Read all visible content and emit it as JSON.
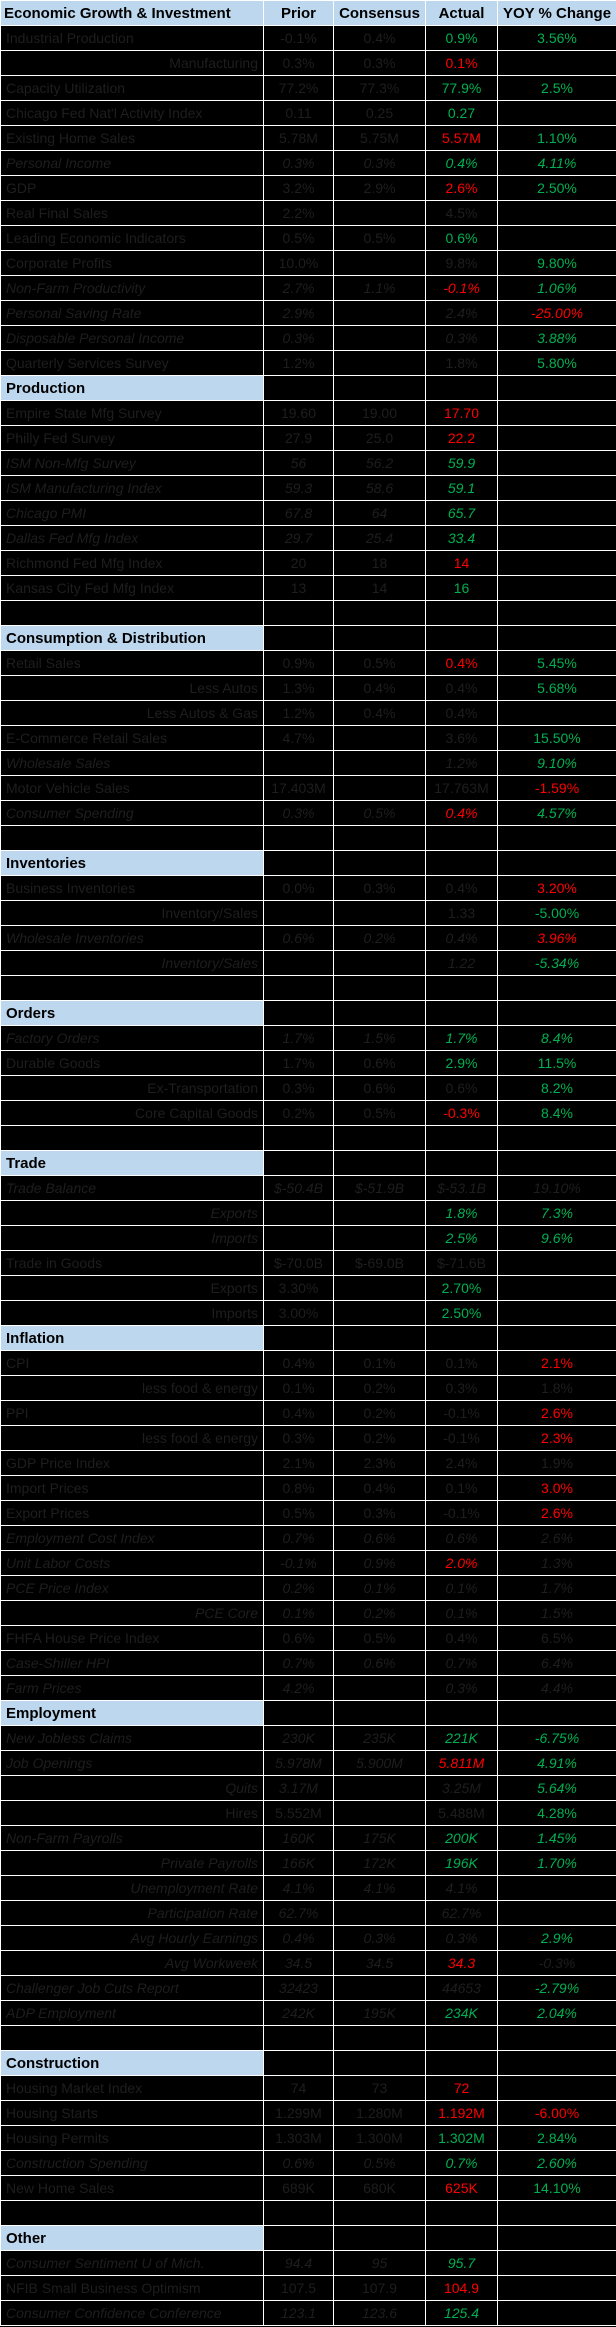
{
  "palette": {
    "background": "#000000",
    "gridline": "#FFFFFF",
    "header_bg": "#BDD7EE",
    "header_text": "#000000",
    "positive_value": "#00B050",
    "negative_value": "#FF0000",
    "muted_value": "#1E1E1E"
  },
  "header": {
    "title": "Economic Growth & Investment",
    "columns": [
      "Prior",
      "Consensus",
      "Actual",
      "YOY % Change"
    ]
  },
  "sections": [
    {
      "title": "",
      "rows": [
        {
          "label": "Industrial Production",
          "prior": "-0.1%",
          "consensus": "0.4%",
          "actual": "0.9%",
          "ac": "green",
          "yoy": "3.56%",
          "yc": "green"
        },
        {
          "label": "Manufacturing",
          "align": "right",
          "prior": "0.3%",
          "consensus": "0.3%",
          "actual": "0.1%",
          "ac": "red",
          "yoy": ""
        },
        {
          "label": "Capacity Utilization",
          "prior": "77.2%",
          "consensus": "77.3%",
          "actual": "77.9%",
          "ac": "green",
          "yoy": "2.5%",
          "yc": "green"
        },
        {
          "label": "Chicago Fed Nat'l Activity Index",
          "prior": "0.11",
          "consensus": "0.25",
          "actual": "0.27",
          "ac": "green",
          "yoy": ""
        },
        {
          "label": "Existing Home Sales",
          "prior": "5.78M",
          "consensus": "5.75M",
          "actual": "5.57M",
          "ac": "red",
          "yoy": "1.10%",
          "yc": "green"
        },
        {
          "label": "Personal Income",
          "italic": true,
          "prior": "0.3%",
          "consensus": "0.3%",
          "actual": "0.4%",
          "ac": "green",
          "yoy": "4.11%",
          "yc": "green"
        },
        {
          "label": "GDP",
          "prior": "3.2%",
          "consensus": "2.9%",
          "actual": "2.6%",
          "ac": "red",
          "yoy": "2.50%",
          "yc": "green"
        },
        {
          "label": "Real Final Sales",
          "prior": "2.2%",
          "consensus": "",
          "actual": "4.5%",
          "ac": "dark",
          "yoy": ""
        },
        {
          "label": "Leading Economic Indicators",
          "prior": "0.5%",
          "consensus": "0.5%",
          "actual": "0.6%",
          "ac": "green",
          "yoy": ""
        },
        {
          "label": "Corporate Profits",
          "prior": "10.0%",
          "consensus": "",
          "actual": "9.8%",
          "ac": "dark",
          "yoy": "9.80%",
          "yc": "green"
        },
        {
          "label": "Non-Farm Productivity",
          "italic": true,
          "prior": "2.7%",
          "consensus": "1.1%",
          "actual": "-0.1%",
          "ac": "red",
          "yoy": "1.06%",
          "yc": "green"
        },
        {
          "label": "Personal Saving Rate",
          "italic": true,
          "prior": "2.9%",
          "consensus": "",
          "actual": "2.4%",
          "ac": "dark",
          "yoy": "-25.00%",
          "yc": "red"
        },
        {
          "label": "Disposable Personal Income",
          "italic": true,
          "prior": "0.3%",
          "consensus": "",
          "actual": "0.3%",
          "ac": "dark",
          "yoy": "3.88%",
          "yc": "green"
        },
        {
          "label": "Quarterly Services Survey",
          "prior": "1.2%",
          "consensus": "",
          "actual": "1.8%",
          "ac": "dark",
          "yoy": "5.80%",
          "yc": "green"
        }
      ]
    },
    {
      "title": "Production",
      "rows": [
        {
          "label": "Empire State Mfg Survey",
          "prior": "19.60",
          "consensus": "19.00",
          "actual": "17.70",
          "ac": "red",
          "yoy": ""
        },
        {
          "label": "Philly Fed Survey",
          "prior": "27.9",
          "consensus": "25.0",
          "actual": "22.2",
          "ac": "red",
          "yoy": ""
        },
        {
          "label": "ISM Non-Mfg Survey",
          "italic": true,
          "prior": "56",
          "consensus": "56.2",
          "actual": "59.9",
          "ac": "green",
          "yoy": ""
        },
        {
          "label": "ISM Manufacturing Index",
          "italic": true,
          "prior": "59.3",
          "consensus": "58.6",
          "actual": "59.1",
          "ac": "green",
          "yoy": ""
        },
        {
          "label": "Chicago PMI",
          "italic": true,
          "prior": "67.8",
          "consensus": "64",
          "actual": "65.7",
          "ac": "green",
          "yoy": ""
        },
        {
          "label": "Dallas Fed Mfg Index",
          "italic": true,
          "prior": "29.7",
          "consensus": "25.4",
          "actual": "33.4",
          "ac": "green",
          "yoy": ""
        },
        {
          "label": "Richmond Fed Mfg Index",
          "prior": "20",
          "consensus": "18",
          "actual": "14",
          "ac": "red",
          "yoy": ""
        },
        {
          "label": "Kansas City Fed Mfg Index",
          "prior": "13",
          "consensus": "14",
          "actual": "16",
          "ac": "green",
          "yoy": ""
        },
        {
          "spacer": true
        }
      ]
    },
    {
      "title": "Consumption & Distribution",
      "rows": [
        {
          "label": "Retail Sales",
          "prior": "0.9%",
          "consensus": "0.5%",
          "actual": "0.4%",
          "ac": "red",
          "yoy": "5.45%",
          "yc": "green"
        },
        {
          "label": "Less Autos",
          "align": "right",
          "prior": "1.3%",
          "consensus": "0.4%",
          "actual": "0.4%",
          "ac": "dark",
          "yoy": "5.68%",
          "yc": "green"
        },
        {
          "label": "Less Autos & Gas",
          "align": "right",
          "prior": "1.2%",
          "consensus": "0.4%",
          "actual": "0.4%",
          "ac": "dark",
          "yoy": ""
        },
        {
          "label": "E-Commerce Retail Sales",
          "prior": "4.7%",
          "consensus": "",
          "actual": "3.6%",
          "ac": "dark",
          "yoy": "15.50%",
          "yc": "green"
        },
        {
          "label": "Wholesale Sales",
          "italic": true,
          "prior": "",
          "consensus": "",
          "actual": "1.2%",
          "ac": "dark",
          "yoy": "9.10%",
          "yc": "green"
        },
        {
          "label": "Motor Vehicle Sales",
          "prior": "17.403M",
          "consensus": "",
          "actual": "17.763M",
          "ac": "dark",
          "yoy": "-1.59%",
          "yc": "red"
        },
        {
          "label": "Consumer Spending",
          "italic": true,
          "prior": "0.3%",
          "consensus": "0.5%",
          "actual": "0.4%",
          "ac": "red",
          "yoy": "4.57%",
          "yc": "green"
        },
        {
          "spacer": true
        }
      ]
    },
    {
      "title": "Inventories",
      "rows": [
        {
          "label": "Business Inventories",
          "prior": "0.0%",
          "consensus": "0.3%",
          "actual": "0.4%",
          "ac": "dark",
          "yoy": "3.20%",
          "yc": "red"
        },
        {
          "label": "Inventory/Sales",
          "align": "right",
          "prior": "",
          "consensus": "",
          "actual": "1.33",
          "ac": "dark",
          "yoy": "-5.00%",
          "yc": "green"
        },
        {
          "label": "Wholesale Inventories",
          "italic": true,
          "prior": "0.6%",
          "consensus": "0.2%",
          "actual": "0.4%",
          "ac": "dark",
          "yoy": "3.96%",
          "yc": "red"
        },
        {
          "label": "Inventory/Sales",
          "align": "right",
          "italic": true,
          "prior": "",
          "consensus": "",
          "actual": "1.22",
          "ac": "dark",
          "yoy": "-5.34%",
          "yc": "green"
        },
        {
          "spacer": true
        }
      ]
    },
    {
      "title": "Orders",
      "rows": [
        {
          "label": "Factory Orders",
          "italic": true,
          "prior": "1.7%",
          "consensus": "1.5%",
          "actual": "1.7%",
          "ac": "green",
          "yoy": "8.4%",
          "yc": "green"
        },
        {
          "label": "Durable Goods",
          "prior": "1.7%",
          "consensus": "0.6%",
          "actual": "2.9%",
          "ac": "green",
          "yoy": "11.5%",
          "yc": "green"
        },
        {
          "label": "Ex-Transportation",
          "align": "right",
          "prior": "0.3%",
          "consensus": "0.6%",
          "actual": "0.6%",
          "ac": "dark",
          "yoy": "8.2%",
          "yc": "green"
        },
        {
          "label": "Core Capital Goods",
          "align": "right",
          "prior": "0.2%",
          "consensus": "0.5%",
          "actual": "-0.3%",
          "ac": "red",
          "yoy": "8.4%",
          "yc": "green"
        },
        {
          "spacer": true
        }
      ]
    },
    {
      "title": "Trade",
      "rows": [
        {
          "label": "Trade Balance",
          "italic": true,
          "prior": "$-50.4B",
          "consensus": "$-51.9B",
          "actual": "$-53.1B",
          "ac": "dark",
          "yoy": "19.10%",
          "yc": "dark"
        },
        {
          "label": "Exports",
          "align": "right",
          "italic": true,
          "prior": "",
          "consensus": "",
          "actual": "1.8%",
          "ac": "green",
          "yoy": "7.3%",
          "yc": "green"
        },
        {
          "label": "Imports",
          "align": "right",
          "italic": true,
          "prior": "",
          "consensus": "",
          "actual": "2.5%",
          "ac": "green",
          "yoy": "9.6%",
          "yc": "green"
        },
        {
          "label": "Trade in Goods",
          "prior": "$-70.0B",
          "consensus": "$-69.0B",
          "actual": "$-71.6B",
          "ac": "dark",
          "yoy": ""
        },
        {
          "label": "Exports",
          "align": "right",
          "prior": "3.30%",
          "consensus": "",
          "actual": "2.70%",
          "ac": "green",
          "yoy": ""
        },
        {
          "label": "Imports",
          "align": "right",
          "prior": "3.00%",
          "consensus": "",
          "actual": "2.50%",
          "ac": "green",
          "yoy": ""
        }
      ]
    },
    {
      "title": "Inflation",
      "rows": [
        {
          "label": "CPI",
          "prior": "0.4%",
          "consensus": "0.1%",
          "actual": "0.1%",
          "ac": "dark",
          "yoy": "2.1%",
          "yc": "red"
        },
        {
          "label": "less food & energy",
          "align": "right",
          "prior": "0.1%",
          "consensus": "0.2%",
          "actual": "0.3%",
          "ac": "dark",
          "yoy": "1.8%",
          "yc": "dark"
        },
        {
          "label": "PPI",
          "prior": "0.4%",
          "consensus": "0.2%",
          "actual": "-0.1%",
          "ac": "dark",
          "yoy": "2.6%",
          "yc": "red"
        },
        {
          "label": "less food & energy",
          "align": "right",
          "prior": "0.3%",
          "consensus": "0.2%",
          "actual": "-0.1%",
          "ac": "dark",
          "yoy": "2.3%",
          "yc": "red"
        },
        {
          "label": "GDP Price Index",
          "prior": "2.1%",
          "consensus": "2.3%",
          "actual": "2.4%",
          "ac": "dark",
          "yoy": "1.9%",
          "yc": "dark"
        },
        {
          "label": "Import Prices",
          "prior": "0.8%",
          "consensus": "0.4%",
          "actual": "0.1%",
          "ac": "dark",
          "yoy": "3.0%",
          "yc": "red"
        },
        {
          "label": "Export Prices",
          "prior": "0.5%",
          "consensus": "0.3%",
          "actual": "-0.1%",
          "ac": "dark",
          "yoy": "2.6%",
          "yc": "red"
        },
        {
          "label": "Employment Cost Index",
          "italic": true,
          "prior": "0.7%",
          "consensus": "0.6%",
          "actual": "0.6%",
          "ac": "dark",
          "yoy": "2.6%",
          "yc": "dark"
        },
        {
          "label": "Unit Labor Costs",
          "italic": true,
          "prior": "-0.1%",
          "consensus": "0.9%",
          "actual": "2.0%",
          "ac": "red",
          "yoy": "1.3%",
          "yc": "dark"
        },
        {
          "label": "PCE Price Index",
          "italic": true,
          "prior": "0.2%",
          "consensus": "0.1%",
          "actual": "0.1%",
          "ac": "dark",
          "yoy": "1.7%",
          "yc": "dark"
        },
        {
          "label": "PCE Core",
          "align": "right",
          "italic": true,
          "prior": "0.1%",
          "consensus": "0.2%",
          "actual": "0.1%",
          "ac": "dark",
          "yoy": "1.5%",
          "yc": "dark"
        },
        {
          "label": "FHFA House Price Index",
          "prior": "0.6%",
          "consensus": "0.5%",
          "actual": "0.4%",
          "ac": "dark",
          "yoy": "6.5%",
          "yc": "dark"
        },
        {
          "label": "Case-Shiller HPI",
          "italic": true,
          "prior": "0.7%",
          "consensus": "0.6%",
          "actual": "0.7%",
          "ac": "dark",
          "yoy": "6.4%",
          "yc": "dark"
        },
        {
          "label": "Farm Prices",
          "italic": true,
          "prior": "4.2%",
          "consensus": "",
          "actual": "0.3%",
          "ac": "dark",
          "yoy": "4.4%",
          "yc": "dark"
        }
      ]
    },
    {
      "title": "Employment",
      "rows": [
        {
          "label": "New Jobless Claims",
          "italic": true,
          "prior": "230K",
          "consensus": "235K",
          "actual": "221K",
          "ac": "green",
          "yoy": "-6.75%",
          "yc": "green"
        },
        {
          "label": "Job Openings",
          "italic": true,
          "prior": "5.978M",
          "consensus": "5.900M",
          "actual": "5.811M",
          "ac": "red",
          "yoy": "4.91%",
          "yc": "green"
        },
        {
          "label": "Quits",
          "align": "right",
          "italic": true,
          "prior": "3.17M",
          "consensus": "",
          "actual": "3.25M",
          "ac": "dark",
          "yoy": "5.64%",
          "yc": "green"
        },
        {
          "label": "Hires",
          "align": "right",
          "prior": "5.552M",
          "consensus": "",
          "actual": "5.488M",
          "ac": "dark",
          "yoy": "4.28%",
          "yc": "green"
        },
        {
          "label": "Non-Farm Payrolls",
          "italic": true,
          "prior": "160K",
          "consensus": "175K",
          "actual": "200K",
          "ac": "green",
          "yoy": "1.45%",
          "yc": "green"
        },
        {
          "label": "Private Payrolls",
          "align": "right",
          "italic": true,
          "prior": "166K",
          "consensus": "172K",
          "actual": "196K",
          "ac": "green",
          "yoy": "1.70%",
          "yc": "green"
        },
        {
          "label": "Unemployment Rate",
          "align": "right",
          "italic": true,
          "prior": "4.1%",
          "consensus": "4.1%",
          "actual": "4.1%",
          "ac": "dark",
          "yoy": ""
        },
        {
          "label": "Participation Rate",
          "align": "right",
          "italic": true,
          "prior": "62.7%",
          "consensus": "",
          "actual": "62.7%",
          "ac": "dark",
          "yoy": ""
        },
        {
          "label": "Avg Hourly Earnings",
          "align": "right",
          "italic": true,
          "prior": "0.4%",
          "consensus": "0.3%",
          "actual": "0.3%",
          "ac": "dark",
          "yoy": "2.9%",
          "yc": "green"
        },
        {
          "label": "Avg Workweek",
          "align": "right",
          "italic": true,
          "prior": "34.5",
          "consensus": "34.5",
          "actual": "34.3",
          "ac": "red",
          "yoy": "-0.3%",
          "yc": "dark"
        },
        {
          "label": "Challenger Job Cuts Report",
          "italic": true,
          "prior": "32423",
          "consensus": "",
          "actual": "44653",
          "ac": "dark",
          "yoy": "-2.79%",
          "yc": "green"
        },
        {
          "label": "ADP Employment",
          "italic": true,
          "prior": "242K",
          "consensus": "195K",
          "actual": "234K",
          "ac": "green",
          "yoy": "2.04%",
          "yc": "green"
        },
        {
          "spacer": true
        }
      ]
    },
    {
      "title": "Construction",
      "rows": [
        {
          "label": "Housing Market Index",
          "prior": "74",
          "consensus": "73",
          "actual": "72",
          "ac": "red",
          "yoy": ""
        },
        {
          "label": "Housing Starts",
          "prior": "1.299M",
          "consensus": "1.280M",
          "actual": "1.192M",
          "ac": "red",
          "yoy": "-6.00%",
          "yc": "red"
        },
        {
          "label": "Housing Permits",
          "prior": "1.303M",
          "consensus": "1.300M",
          "actual": "1.302M",
          "ac": "green",
          "yoy": "2.84%",
          "yc": "green"
        },
        {
          "label": "Construction Spending",
          "italic": true,
          "prior": "0.6%",
          "consensus": "0.5%",
          "actual": "0.7%",
          "ac": "green",
          "yoy": "2.60%",
          "yc": "green"
        },
        {
          "label": "New Home Sales",
          "prior": "689K",
          "consensus": "680K",
          "actual": "625K",
          "ac": "red",
          "yoy": "14.10%",
          "yc": "green"
        },
        {
          "spacer": true
        }
      ]
    },
    {
      "title": "Other",
      "rows": [
        {
          "label": "Consumer Sentiment U of Mich.",
          "italic": true,
          "prior": "94.4",
          "consensus": "95",
          "actual": "95.7",
          "ac": "green",
          "yoy": ""
        },
        {
          "label": "NFIB Small Business Optimism",
          "prior": "107.5",
          "consensus": "107.9",
          "actual": "104.9",
          "ac": "red",
          "yoy": ""
        },
        {
          "label": "Consumer Confidence Conference",
          "italic": true,
          "prior": "123.1",
          "consensus": "123.6",
          "actual": "125.4",
          "ac": "green",
          "yoy": ""
        }
      ]
    }
  ]
}
